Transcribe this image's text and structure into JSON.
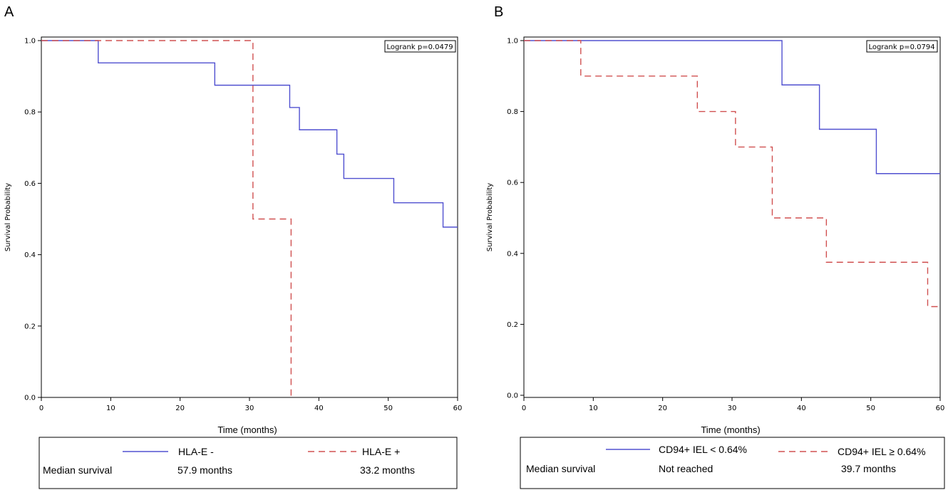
{
  "chart_data": [
    {
      "type": "line",
      "panel_label": "A",
      "xlabel": "Time (months)",
      "ylabel": "Survival Probability",
      "xlim": [
        0,
        60
      ],
      "ylim": [
        0,
        1
      ],
      "xticks": [
        "0",
        "10",
        "20",
        "30",
        "40",
        "50",
        "60"
      ],
      "yticks": [
        "0.0",
        "0.2",
        "0.4",
        "0.6",
        "0.8",
        "1.0"
      ],
      "annotation": "Logrank p=0.0479",
      "median_label": "Median survival",
      "series": [
        {
          "name": "HLA-E -",
          "color": "#5050d0",
          "style": "solid",
          "median": "57.9 months",
          "steps": [
            [
              0,
              1.0
            ],
            [
              8.2,
              0.9375
            ],
            [
              25,
              0.875
            ],
            [
              35.8,
              0.8125
            ],
            [
              37.2,
              0.75
            ],
            [
              42.6,
              0.6818
            ],
            [
              43.6,
              0.6136
            ],
            [
              50.8,
              0.5455
            ],
            [
              57.9,
              0.4773
            ],
            [
              60,
              0.4773
            ]
          ]
        },
        {
          "name": "HLA-E +",
          "color": "#d05050",
          "style": "dashed",
          "median": "33.2 months",
          "steps": [
            [
              0,
              1.0
            ],
            [
              30.5,
              0.5
            ],
            [
              36,
              0.0
            ]
          ]
        }
      ]
    },
    {
      "type": "line",
      "panel_label": "B",
      "xlabel": "Time (months)",
      "ylabel": "Survival Probability",
      "xlim": [
        0,
        60
      ],
      "ylim": [
        0,
        1
      ],
      "xticks": [
        "0",
        "10",
        "20",
        "30",
        "40",
        "50",
        "60"
      ],
      "yticks": [
        "0.0",
        "0.2",
        "0.4",
        "0.6",
        "0.8",
        "1.0"
      ],
      "annotation": "Logrank p=0.0794",
      "median_label": "Median survival",
      "series": [
        {
          "name": "CD94+ IEL < 0.64%",
          "color": "#5050d0",
          "style": "solid",
          "median": "Not reached",
          "steps": [
            [
              0,
              1.0
            ],
            [
              37.2,
              0.875
            ],
            [
              42.6,
              0.75
            ],
            [
              50.8,
              0.625
            ],
            [
              60,
              0.625
            ]
          ]
        },
        {
          "name": "CD94+ IEL ≥ 0.64%",
          "color": "#d05050",
          "style": "dashed",
          "median": "39.7 months",
          "steps": [
            [
              0,
              1.0
            ],
            [
              8.2,
              0.9
            ],
            [
              25,
              0.8
            ],
            [
              30.5,
              0.7
            ],
            [
              35.8,
              0.5
            ],
            [
              43.6,
              0.375
            ],
            [
              58.2,
              0.25
            ],
            [
              60,
              0.25
            ]
          ]
        }
      ]
    }
  ]
}
